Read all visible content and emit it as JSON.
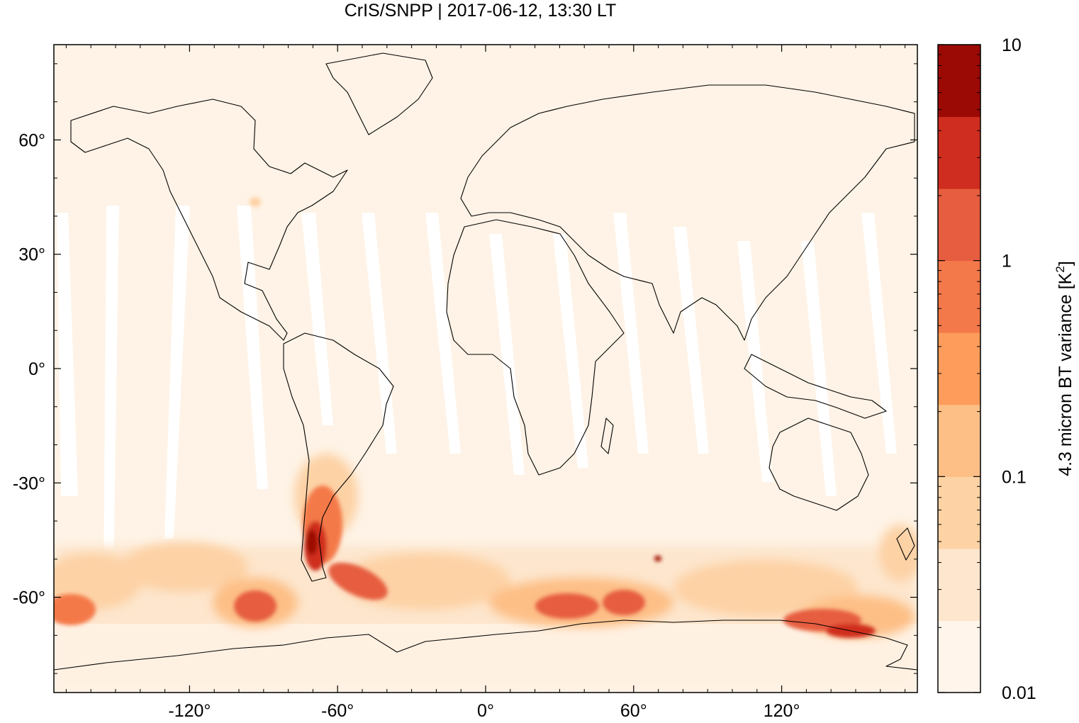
{
  "chart_data": {
    "type": "heatmap",
    "title": "CrIS/SNPP | 2017-06-12, 13:30 LT",
    "x_axis": {
      "range": [
        -175,
        175
      ],
      "ticks": [
        -120,
        -60,
        0,
        60,
        120
      ],
      "tick_labels": [
        "-120°",
        "-60°",
        "0°",
        "60°",
        "120°"
      ]
    },
    "y_axis": {
      "range": [
        -85,
        85
      ],
      "ticks": [
        60,
        30,
        0,
        -30,
        -60
      ],
      "tick_labels": [
        "60°",
        "30°",
        "0°",
        "-30°",
        "-60°"
      ]
    },
    "colorbar": {
      "label": "4.3 micron BT variance [K",
      "label_superscript": "2",
      "label_close": "]",
      "scale": "log",
      "range": [
        0.01,
        10
      ],
      "tick_values": [
        10,
        1,
        0.1,
        0.01
      ],
      "tick_labels": [
        "10",
        "1",
        "0.1",
        "0.01"
      ],
      "bins": [
        {
          "from": 0.01,
          "to": 0.02,
          "color": "#fff5eb"
        },
        {
          "from": 0.02,
          "to": 0.05,
          "color": "#fde6cd"
        },
        {
          "from": 0.05,
          "to": 0.1,
          "color": "#fdd2a5"
        },
        {
          "from": 0.1,
          "to": 0.2,
          "color": "#fdbf86"
        },
        {
          "from": 0.2,
          "to": 0.5,
          "color": "#fd9c5b"
        },
        {
          "from": 0.5,
          "to": 1,
          "color": "#f4794a"
        },
        {
          "from": 1,
          "to": 2,
          "color": "#e65d3f"
        },
        {
          "from": 2,
          "to": 5,
          "color": "#cf2d1f"
        },
        {
          "from": 5,
          "to": 10,
          "color": "#9c0a06"
        }
      ]
    },
    "grid": false
  }
}
